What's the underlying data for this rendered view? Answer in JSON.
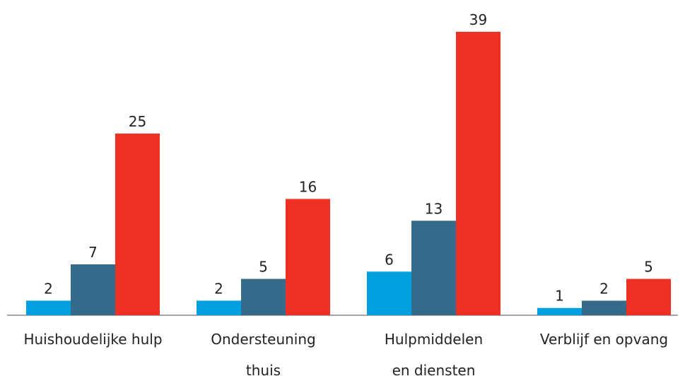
{
  "chart_data": {
    "type": "bar",
    "categories": [
      "Huishoudelijke hulp",
      "Ondersteuning\nthuis",
      "Hulpmiddelen\nen diensten",
      "Verblijf en opvang"
    ],
    "series": [
      {
        "color": "#009fdf",
        "values": [
          2,
          2,
          6,
          1
        ]
      },
      {
        "color": "#356b8a",
        "values": [
          7,
          5,
          13,
          2
        ]
      },
      {
        "color": "#ef3125",
        "values": [
          25,
          16,
          39,
          5
        ]
      }
    ]
  }
}
